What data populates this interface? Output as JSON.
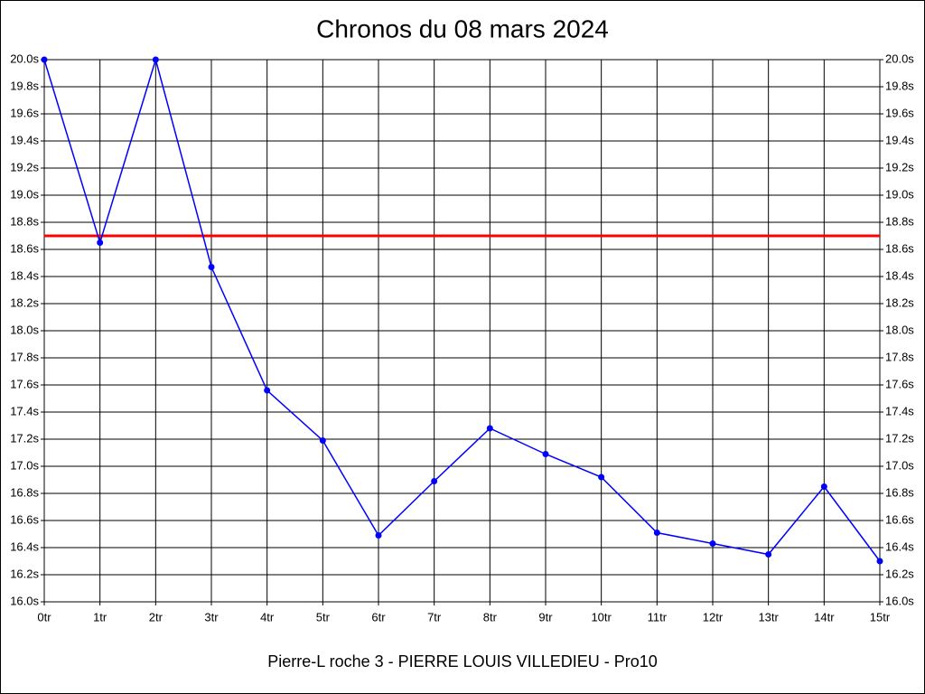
{
  "chart_data": {
    "type": "line",
    "title": "Chronos du 08 mars 2024",
    "subtitle": "Pierre-L roche 3 - PIERRE LOUIS VILLEDIEU - Pro10",
    "x": [
      0,
      1,
      2,
      3,
      4,
      5,
      6,
      7,
      8,
      9,
      10,
      11,
      12,
      13,
      14,
      15
    ],
    "values": [
      20.0,
      18.65,
      20.0,
      18.47,
      17.56,
      17.19,
      16.49,
      16.89,
      17.28,
      17.09,
      16.92,
      16.51,
      16.43,
      16.35,
      16.85,
      16.3
    ],
    "color": "#0000ff",
    "reference_line": {
      "value": 18.7,
      "color": "#ff0000"
    },
    "xlim": [
      0,
      15
    ],
    "xticks": [
      {
        "value": 0,
        "label": "0tr"
      },
      {
        "value": 1,
        "label": "1tr"
      },
      {
        "value": 2,
        "label": "2tr"
      },
      {
        "value": 3,
        "label": "3tr"
      },
      {
        "value": 4,
        "label": "4tr"
      },
      {
        "value": 5,
        "label": "5tr"
      },
      {
        "value": 6,
        "label": "6tr"
      },
      {
        "value": 7,
        "label": "7tr"
      },
      {
        "value": 8,
        "label": "8tr"
      },
      {
        "value": 9,
        "label": "9tr"
      },
      {
        "value": 10,
        "label": "10tr"
      },
      {
        "value": 11,
        "label": "11tr"
      },
      {
        "value": 12,
        "label": "12tr"
      },
      {
        "value": 13,
        "label": "13tr"
      },
      {
        "value": 14,
        "label": "14tr"
      },
      {
        "value": 15,
        "label": "15tr"
      }
    ],
    "ylim": [
      16.0,
      20.0
    ],
    "yticks": [
      {
        "value": 16.0,
        "label": "16.0s"
      },
      {
        "value": 16.2,
        "label": "16.2s"
      },
      {
        "value": 16.4,
        "label": "16.4s"
      },
      {
        "value": 16.6,
        "label": "16.6s"
      },
      {
        "value": 16.8,
        "label": "16.8s"
      },
      {
        "value": 17.0,
        "label": "17.0s"
      },
      {
        "value": 17.2,
        "label": "17.2s"
      },
      {
        "value": 17.4,
        "label": "17.4s"
      },
      {
        "value": 17.6,
        "label": "17.6s"
      },
      {
        "value": 17.8,
        "label": "17.8s"
      },
      {
        "value": 18.0,
        "label": "18.0s"
      },
      {
        "value": 18.2,
        "label": "18.2s"
      },
      {
        "value": 18.4,
        "label": "18.4s"
      },
      {
        "value": 18.6,
        "label": "18.6s"
      },
      {
        "value": 18.8,
        "label": "18.8s"
      },
      {
        "value": 19.0,
        "label": "19.0s"
      },
      {
        "value": 19.2,
        "label": "19.2s"
      },
      {
        "value": 19.4,
        "label": "19.4s"
      },
      {
        "value": 19.6,
        "label": "19.6s"
      },
      {
        "value": 19.8,
        "label": "19.8s"
      },
      {
        "value": 20.0,
        "label": "20.0s"
      }
    ],
    "grid": true
  }
}
